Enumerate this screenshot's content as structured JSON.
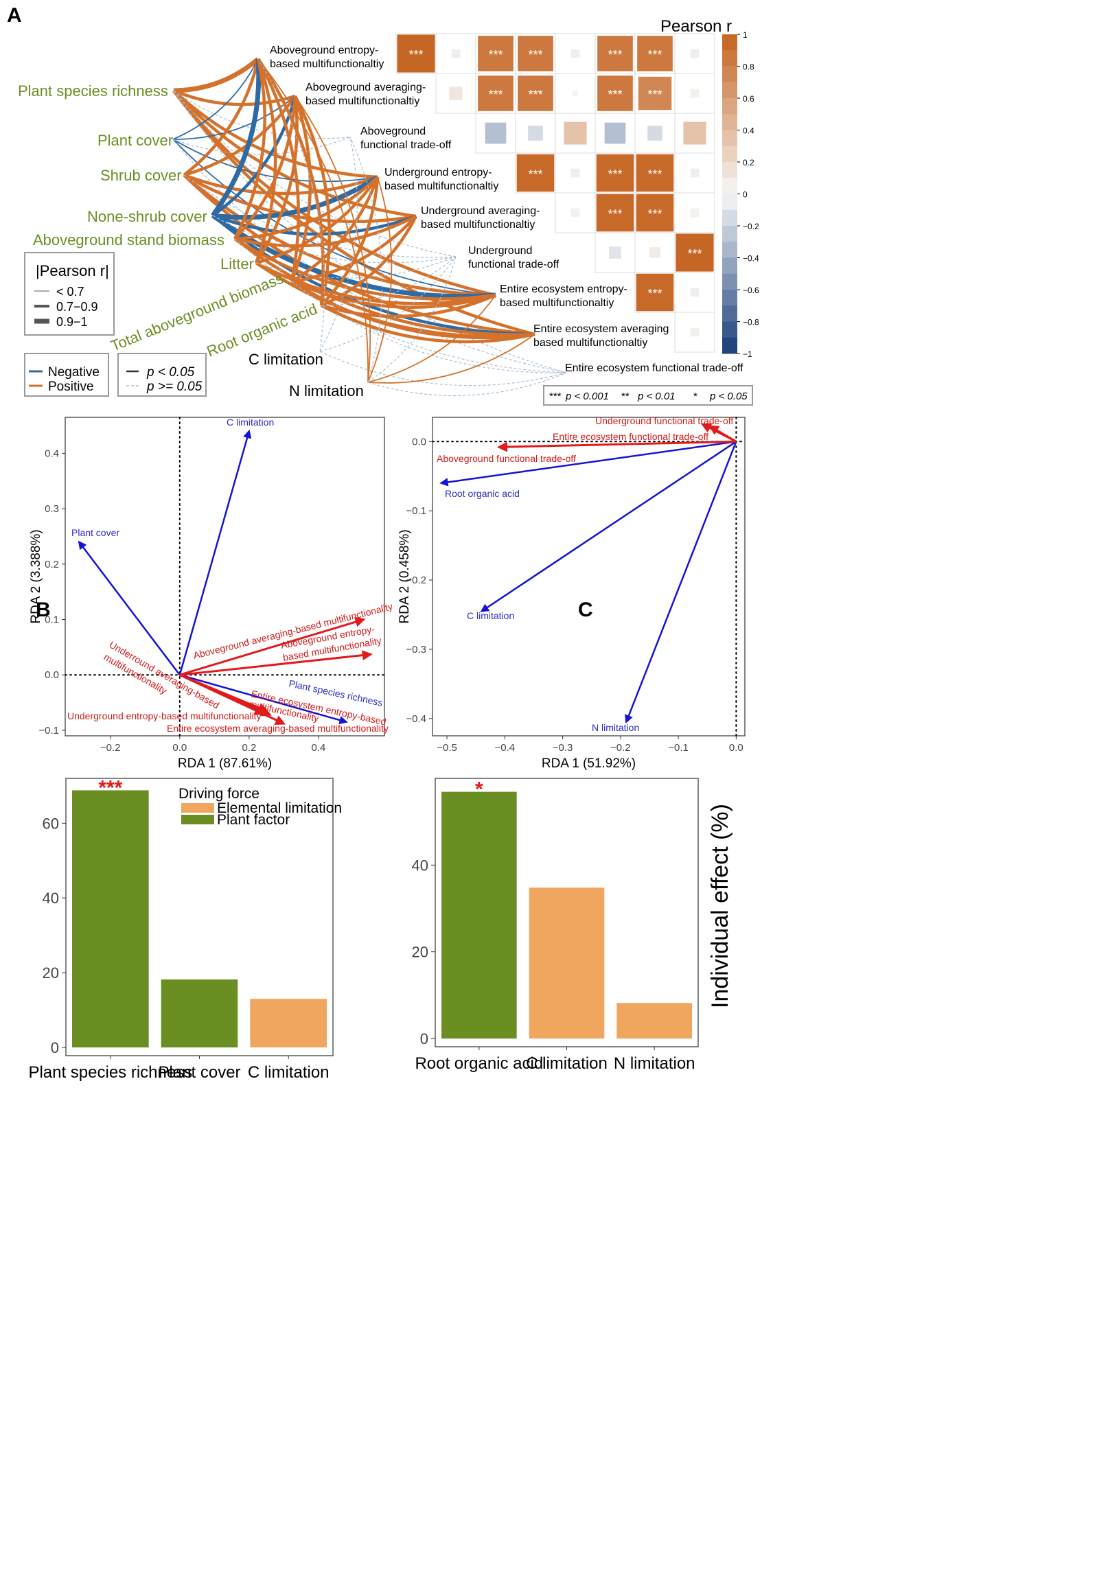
{
  "panels": {
    "a": "A",
    "b": "B",
    "c": "C"
  },
  "colors": {
    "positive": "#d4712a",
    "negative": "#2e6aa3",
    "green_label": "#6b8e23",
    "bar_green": "#6b8e23",
    "bar_orange": "#f0a65f",
    "arrow_red": "#e31a1c",
    "arrow_blue": "#1414d8",
    "label_red": "#d11a1a",
    "label_blue": "#2a2ac8",
    "star_red": "#e31a1c"
  },
  "chart_data": [
    {
      "type": "heatmap",
      "id": "panel_a_correlation",
      "title": "Pearson r",
      "functions": [
        "Aboveground entropy-based multifunctionaltiy",
        "Aboveground averaging-based multifunctionaltiy",
        "Aboveground functional trade-off",
        "Underground entropy-based multifunctionaltiy",
        "Underground averaging-based multifunctionaltiy",
        "Underground functional trade-off",
        "Entire ecosystem entropy-based multifunctionaltiy",
        "Entire ecosystem averaging based multifunctionaltiy",
        "Entire ecosystem functional trade-off"
      ],
      "label_lines": [
        [
          "Aboveground entropy-",
          "based multifunctionaltiy"
        ],
        [
          "Aboveground averaging-",
          "based multifunctionaltiy"
        ],
        [
          "Aboveground",
          "functional trade-off"
        ],
        [
          "Underground entropy-",
          "based multifunctionaltiy"
        ],
        [
          "Underground averaging-",
          "based multifunctionaltiy"
        ],
        [
          "Underground",
          "functional trade-off"
        ],
        [
          "Entire ecosystem entropy-",
          "based multifunctionaltiy"
        ],
        [
          "Entire ecosystem averaging",
          "based multifunctionaltiy"
        ],
        [
          "Entire ecosystem functional trade-off"
        ]
      ],
      "cells": [
        {
          "row": 0,
          "col": 0,
          "r": 0.97,
          "sig": "***"
        },
        {
          "row": 0,
          "col": 1,
          "r": -0.05,
          "sig": ""
        },
        {
          "row": 0,
          "col": 2,
          "r": 0.85,
          "sig": "***"
        },
        {
          "row": 0,
          "col": 3,
          "r": 0.85,
          "sig": "***"
        },
        {
          "row": 0,
          "col": 4,
          "r": -0.05,
          "sig": ""
        },
        {
          "row": 0,
          "col": 5,
          "r": 0.85,
          "sig": "***"
        },
        {
          "row": 0,
          "col": 6,
          "r": 0.85,
          "sig": "***"
        },
        {
          "row": 0,
          "col": 7,
          "r": -0.05,
          "sig": ""
        },
        {
          "row": 1,
          "col": 1,
          "r": 0.12,
          "sig": ""
        },
        {
          "row": 1,
          "col": 2,
          "r": 0.85,
          "sig": "***"
        },
        {
          "row": 1,
          "col": 3,
          "r": 0.85,
          "sig": "***"
        },
        {
          "row": 1,
          "col": 4,
          "r": 0.02,
          "sig": ""
        },
        {
          "row": 1,
          "col": 5,
          "r": 0.85,
          "sig": "***"
        },
        {
          "row": 1,
          "col": 6,
          "r": 0.75,
          "sig": "***"
        },
        {
          "row": 1,
          "col": 7,
          "r": 0.05,
          "sig": ""
        },
        {
          "row": 2,
          "col": 2,
          "r": -0.3,
          "sig": ""
        },
        {
          "row": 2,
          "col": 3,
          "r": -0.15,
          "sig": ""
        },
        {
          "row": 2,
          "col": 4,
          "r": 0.35,
          "sig": ""
        },
        {
          "row": 2,
          "col": 5,
          "r": -0.3,
          "sig": ""
        },
        {
          "row": 2,
          "col": 6,
          "r": -0.15,
          "sig": ""
        },
        {
          "row": 2,
          "col": 7,
          "r": 0.35,
          "sig": ""
        },
        {
          "row": 3,
          "col": 3,
          "r": 0.95,
          "sig": "***"
        },
        {
          "row": 3,
          "col": 4,
          "r": -0.05,
          "sig": ""
        },
        {
          "row": 3,
          "col": 5,
          "r": 0.95,
          "sig": "***"
        },
        {
          "row": 3,
          "col": 6,
          "r": 0.95,
          "sig": "***"
        },
        {
          "row": 3,
          "col": 7,
          "r": -0.05,
          "sig": ""
        },
        {
          "row": 4,
          "col": 4,
          "r": 0.05,
          "sig": ""
        },
        {
          "row": 4,
          "col": 5,
          "r": 0.95,
          "sig": "***"
        },
        {
          "row": 4,
          "col": 6,
          "r": 0.95,
          "sig": "***"
        },
        {
          "row": 4,
          "col": 7,
          "r": 0.05,
          "sig": ""
        },
        {
          "row": 5,
          "col": 5,
          "r": -0.1,
          "sig": ""
        },
        {
          "row": 5,
          "col": 6,
          "r": 0.08,
          "sig": ""
        },
        {
          "row": 5,
          "col": 7,
          "r": 0.97,
          "sig": "***"
        },
        {
          "row": 6,
          "col": 6,
          "r": 0.95,
          "sig": "***"
        },
        {
          "row": 6,
          "col": 7,
          "r": -0.05,
          "sig": ""
        },
        {
          "row": 7,
          "col": 7,
          "r": 0.05,
          "sig": ""
        }
      ],
      "colorbar": {
        "ticks": [
          "1",
          "0.8",
          "0.6",
          "0.4",
          "0.2",
          "0",
          "−0.2",
          "−0.4",
          "−0.6",
          "−0.8",
          "−1"
        ],
        "range": [
          -1,
          1
        ]
      },
      "sig_legend": [
        {
          "stars": "***",
          "text": "p < 0.001"
        },
        {
          "stars": "**",
          "text": "p < 0.01"
        },
        {
          "stars": "*",
          "text": "p < 0.05"
        }
      ],
      "drivers": [
        "Plant species richness",
        "Plant cover",
        "Shrub cover",
        "None-shrub cover",
        "Aboveground stand biomass",
        "Litter",
        "Total aboveground biomass",
        "Root organic acid",
        "C limitation",
        "N limitation"
      ],
      "links": [
        {
          "from": 0,
          "to": 0,
          "r": 0.92,
          "sig": true
        },
        {
          "from": 0,
          "to": 1,
          "r": 0.85,
          "sig": true
        },
        {
          "from": 0,
          "to": 3,
          "r": 0.8,
          "sig": true
        },
        {
          "from": 0,
          "to": 4,
          "r": 0.8,
          "sig": true
        },
        {
          "from": 0,
          "to": 6,
          "r": 0.85,
          "sig": true
        },
        {
          "from": 0,
          "to": 7,
          "r": 0.8,
          "sig": true
        },
        {
          "from": 0,
          "to": 2,
          "r": 0.2,
          "sig": false
        },
        {
          "from": 0,
          "to": 5,
          "r": 0.2,
          "sig": false
        },
        {
          "from": 0,
          "to": 8,
          "r": 0.2,
          "sig": false
        },
        {
          "from": 1,
          "to": 0,
          "r": -0.6,
          "sig": true
        },
        {
          "from": 1,
          "to": 1,
          "r": -0.5,
          "sig": true
        },
        {
          "from": 1,
          "to": 3,
          "r": -0.5,
          "sig": true
        },
        {
          "from": 1,
          "to": 6,
          "r": -0.5,
          "sig": true
        },
        {
          "from": 1,
          "to": 2,
          "r": 0.2,
          "sig": false
        },
        {
          "from": 1,
          "to": 8,
          "r": 0.2,
          "sig": false
        },
        {
          "from": 2,
          "to": 0,
          "r": 0.8,
          "sig": true
        },
        {
          "from": 2,
          "to": 1,
          "r": 0.8,
          "sig": true
        },
        {
          "from": 2,
          "to": 3,
          "r": 0.75,
          "sig": true
        },
        {
          "from": 2,
          "to": 4,
          "r": 0.75,
          "sig": true
        },
        {
          "from": 2,
          "to": 6,
          "r": 0.75,
          "sig": true
        },
        {
          "from": 2,
          "to": 7,
          "r": 0.75,
          "sig": true
        },
        {
          "from": 2,
          "to": 5,
          "r": 0.2,
          "sig": false
        },
        {
          "from": 3,
          "to": 0,
          "r": -0.92,
          "sig": true
        },
        {
          "from": 3,
          "to": 1,
          "r": -0.85,
          "sig": true
        },
        {
          "from": 3,
          "to": 3,
          "r": -0.92,
          "sig": true
        },
        {
          "from": 3,
          "to": 4,
          "r": -0.8,
          "sig": true
        },
        {
          "from": 3,
          "to": 6,
          "r": -0.92,
          "sig": true
        },
        {
          "from": 3,
          "to": 7,
          "r": -0.85,
          "sig": true
        },
        {
          "from": 3,
          "to": 5,
          "r": 0.2,
          "sig": false
        },
        {
          "from": 4,
          "to": 0,
          "r": 0.8,
          "sig": true
        },
        {
          "from": 4,
          "to": 1,
          "r": 0.8,
          "sig": true
        },
        {
          "from": 4,
          "to": 3,
          "r": 0.75,
          "sig": true
        },
        {
          "from": 4,
          "to": 4,
          "r": 0.75,
          "sig": true
        },
        {
          "from": 4,
          "to": 6,
          "r": 0.75,
          "sig": true
        },
        {
          "from": 4,
          "to": 7,
          "r": 0.75,
          "sig": true
        },
        {
          "from": 4,
          "to": 8,
          "r": 0.2,
          "sig": false
        },
        {
          "from": 5,
          "to": 0,
          "r": 0.75,
          "sig": true
        },
        {
          "from": 5,
          "to": 1,
          "r": 0.75,
          "sig": true
        },
        {
          "from": 5,
          "to": 3,
          "r": 0.7,
          "sig": true
        },
        {
          "from": 5,
          "to": 6,
          "r": 0.7,
          "sig": true
        },
        {
          "from": 5,
          "to": 7,
          "r": 0.7,
          "sig": true
        },
        {
          "from": 5,
          "to": 5,
          "r": 0.2,
          "sig": false
        },
        {
          "from": 6,
          "to": 0,
          "r": 0.8,
          "sig": true
        },
        {
          "from": 6,
          "to": 1,
          "r": 0.8,
          "sig": true
        },
        {
          "from": 6,
          "to": 3,
          "r": 0.75,
          "sig": true
        },
        {
          "from": 6,
          "to": 4,
          "r": 0.75,
          "sig": true
        },
        {
          "from": 6,
          "to": 6,
          "r": 0.75,
          "sig": true
        },
        {
          "from": 6,
          "to": 7,
          "r": 0.75,
          "sig": true
        },
        {
          "from": 6,
          "to": 8,
          "r": 0.2,
          "sig": false
        },
        {
          "from": 7,
          "to": 0,
          "r": 0.75,
          "sig": true
        },
        {
          "from": 7,
          "to": 1,
          "r": 0.75,
          "sig": true
        },
        {
          "from": 7,
          "to": 3,
          "r": 0.7,
          "sig": true
        },
        {
          "from": 7,
          "to": 4,
          "r": 0.7,
          "sig": true
        },
        {
          "from": 7,
          "to": 6,
          "r": 0.7,
          "sig": true
        },
        {
          "from": 7,
          "to": 7,
          "r": 0.7,
          "sig": true
        },
        {
          "from": 7,
          "to": 5,
          "r": 0.2,
          "sig": false
        },
        {
          "from": 8,
          "to": 0,
          "r": 0.2,
          "sig": false
        },
        {
          "from": 8,
          "to": 2,
          "r": 0.2,
          "sig": false
        },
        {
          "from": 8,
          "to": 5,
          "r": 0.2,
          "sig": false
        },
        {
          "from": 8,
          "to": 8,
          "r": 0.2,
          "sig": false
        },
        {
          "from": 9,
          "to": 0,
          "r": 0.55,
          "sig": true
        },
        {
          "from": 9,
          "to": 1,
          "r": 0.55,
          "sig": true
        },
        {
          "from": 9,
          "to": 3,
          "r": 0.55,
          "sig": true
        },
        {
          "from": 9,
          "to": 6,
          "r": 0.55,
          "sig": true
        },
        {
          "from": 9,
          "to": 7,
          "r": 0.55,
          "sig": true
        },
        {
          "from": 9,
          "to": 2,
          "r": 0.2,
          "sig": false
        },
        {
          "from": 9,
          "to": 5,
          "r": 0.2,
          "sig": false
        },
        {
          "from": 9,
          "to": 8,
          "r": 0.2,
          "sig": false
        }
      ],
      "legend_width": {
        "title": "|Pearson r|",
        "items": [
          "< 0.7",
          "0.7−0.9",
          "0.9−1"
        ]
      },
      "legend_sign": {
        "items": [
          "Negative",
          "Positive"
        ]
      },
      "legend_p": {
        "items": [
          "p < 0.05",
          "p >= 0.05"
        ]
      }
    },
    {
      "type": "scatter",
      "id": "panel_b_rda",
      "xlabel": "RDA 1 (87.61%)",
      "ylabel": "RDA 2 (3.388%)",
      "xlim": [
        -0.33,
        0.59
      ],
      "ylim": [
        -0.11,
        0.465
      ],
      "xticks": [
        -0.2,
        0.0,
        0.2,
        0.4
      ],
      "xtick_labels": [
        "−0.2",
        "0.0",
        "0.2",
        "0.4"
      ],
      "yticks": [
        -0.1,
        0.0,
        0.1,
        0.2,
        0.3,
        0.4
      ],
      "ytick_labels": [
        "−0.1",
        "0.0",
        "0.1",
        "0.2",
        "0.3",
        "0.4"
      ],
      "explanatory": [
        {
          "name": "C limitation",
          "x": 0.2,
          "y": 0.44
        },
        {
          "name": "Plant cover",
          "x": -0.29,
          "y": 0.24
        },
        {
          "name": "Plant species richness",
          "x": 0.48,
          "y": -0.085
        }
      ],
      "response": [
        {
          "name": "Aboveground averaging-based multifunctionality",
          "x": 0.53,
          "y": 0.1
        },
        {
          "name": "Aboveground entropy-based multifunctionality",
          "x": 0.55,
          "y": 0.037
        },
        {
          "name": "Underround averaging-based multifunctionality",
          "x": 0.25,
          "y": -0.065
        },
        {
          "name": "Underground entropy-based multifunctionality",
          "x": 0.24,
          "y": -0.07
        },
        {
          "name": "Entire ecosystem entropy-based multifunctionality",
          "x": 0.26,
          "y": -0.072
        },
        {
          "name": "Entire ecosystem averaging-based multifunctionality",
          "x": 0.3,
          "y": -0.088
        }
      ],
      "labels": {
        "c_limitation": "C limitation",
        "plant_cover": "Plant cover",
        "plant_species_richness": "Plant species richness",
        "ag_avg": "Aboveground averaging-based multifunctionality",
        "ag_ent_1": "Aboveground entropy-",
        "ag_ent_2": "based multifunctionality",
        "ug_avg_1": "Underround averaging-based",
        "ug_avg_2": "multifunctionality",
        "ug_ent": "Underground entropy-based multifunctionality",
        "ee_ent_1": "Entire ecosystem entropy-based",
        "ee_ent_2": "multifunctionality",
        "ee_avg": "Entire ecosystem averaging-based multifunctionality"
      }
    },
    {
      "type": "scatter",
      "id": "panel_c_rda",
      "xlabel": "RDA 1 (51.92%)",
      "ylabel": "RDA 2 (0.458%)",
      "xlim": [
        -0.525,
        0.015
      ],
      "ylim": [
        -0.425,
        0.035
      ],
      "xticks": [
        -0.5,
        -0.4,
        -0.3,
        -0.2,
        -0.1,
        0.0
      ],
      "xtick_labels": [
        "−0.5",
        "−0.4",
        "−0.3",
        "−0.2",
        "−0.1",
        "0.0"
      ],
      "yticks": [
        -0.4,
        -0.3,
        -0.2,
        -0.1,
        0.0
      ],
      "ytick_labels": [
        "−0.4",
        "−0.3",
        "−0.2",
        "−0.1",
        "0.0"
      ],
      "explanatory": [
        {
          "name": "Root organic acid",
          "x": -0.51,
          "y": -0.06
        },
        {
          "name": "C limitation",
          "x": -0.44,
          "y": -0.245
        },
        {
          "name": "N limitation",
          "x": -0.19,
          "y": -0.405
        }
      ],
      "response": [
        {
          "name": "Underground functional trade-off",
          "x": -0.058,
          "y": 0.025
        },
        {
          "name": "Entire ecosystem functional trade-off",
          "x": -0.045,
          "y": 0.022
        },
        {
          "name": "Aboveground functional trade-off",
          "x": -0.41,
          "y": -0.008
        }
      ],
      "labels": {
        "ug_to": "Underground functional trade-off",
        "ee_to": "Entire ecosystem functional trade-off",
        "ag_to": "Aboveground functional trade-off",
        "root": "Root organic acid",
        "c_lim": "C limitation",
        "n_lim": "N limitation"
      }
    },
    {
      "type": "bar",
      "id": "panel_b_bars",
      "categories": [
        "Plant species richness",
        "Plant cover",
        "C limitation"
      ],
      "values": [
        68.8,
        18.2,
        13.0
      ],
      "groups": [
        "Plant factor",
        "Plant factor",
        "Elemental limitation"
      ],
      "significance": [
        "***",
        "",
        ""
      ],
      "ylim": [
        0,
        72
      ],
      "yticks": [
        0,
        20,
        40,
        60
      ],
      "legend_title": "Driving force",
      "legend_items": [
        "Elemental limitation",
        "Plant factor"
      ]
    },
    {
      "type": "bar",
      "id": "panel_c_bars",
      "categories": [
        "Root organic acid",
        "C limitation",
        "N limitation"
      ],
      "values": [
        56.9,
        34.8,
        8.2
      ],
      "groups": [
        "Plant factor",
        "Elemental limitation",
        "Elemental limitation"
      ],
      "significance": [
        "*",
        "",
        ""
      ],
      "ylim": [
        0,
        60
      ],
      "yticks": [
        0,
        20,
        40
      ],
      "ylabel": "Individual effect (%)"
    }
  ]
}
